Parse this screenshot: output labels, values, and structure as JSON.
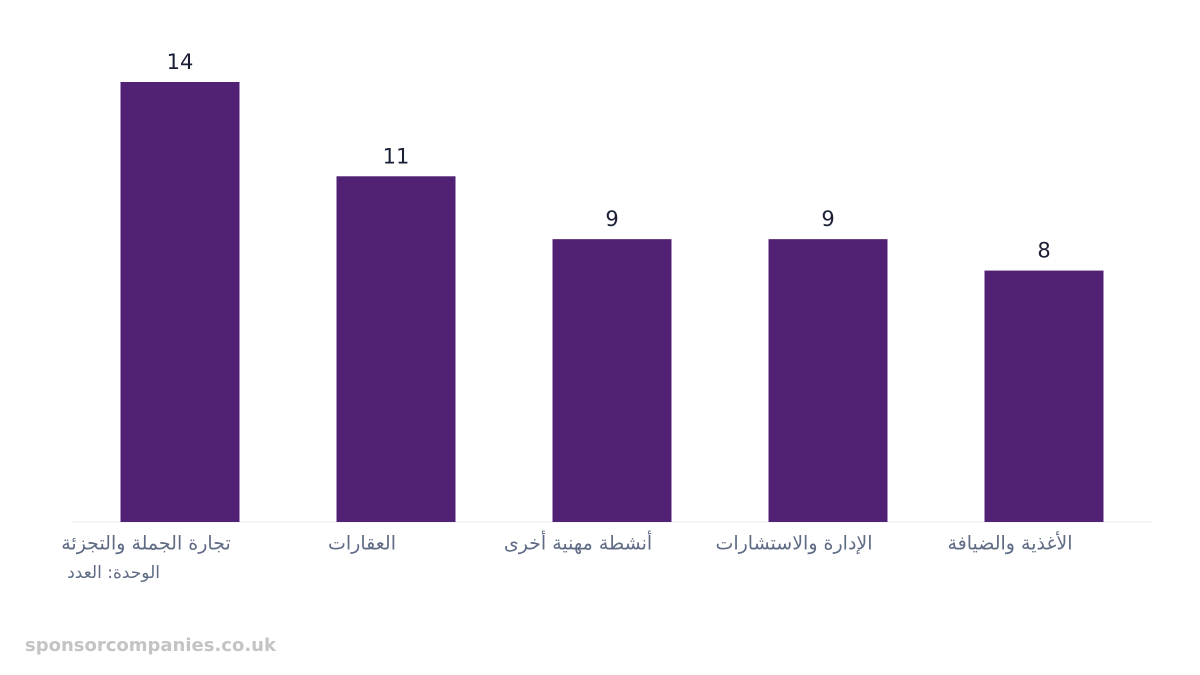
{
  "chart_data": {
    "type": "bar",
    "categories": [
      "تجارة الجملة والتجزئة",
      "العقارات",
      "أنشطة مهنية أخرى",
      "الإدارة والاستشارات",
      "الأغذية والضيافة"
    ],
    "values": [
      14,
      11,
      9,
      9,
      8
    ],
    "color": "#512174",
    "ylim": [
      0,
      14
    ],
    "unit_label": "الوحدة: العدد",
    "watermark": "sponsorcompanies.co.uk"
  }
}
